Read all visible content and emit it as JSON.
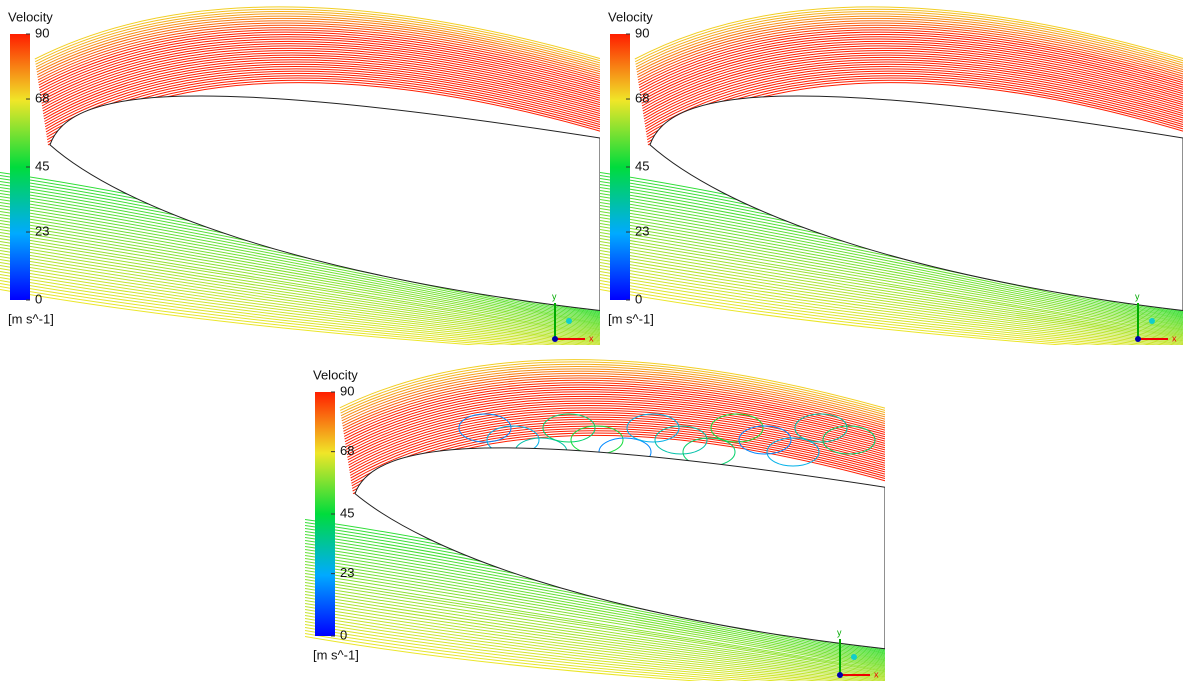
{
  "panels": [
    {
      "legend": {
        "title": "Velocity",
        "ticks": [
          0,
          23,
          45,
          68,
          90
        ],
        "unit": "[m s^-1]"
      },
      "axes": {
        "x": "x",
        "y": "y"
      }
    },
    {
      "legend": {
        "title": "Velocity",
        "ticks": [
          0,
          23,
          45,
          68,
          90
        ],
        "unit": "[m s^-1]"
      },
      "axes": {
        "x": "x",
        "y": "y"
      }
    },
    {
      "legend": {
        "title": "Velocity",
        "ticks": [
          0,
          23,
          45,
          68,
          90
        ],
        "unit": "[m s^-1]"
      },
      "axes": {
        "x": "x",
        "y": "y"
      }
    }
  ]
}
